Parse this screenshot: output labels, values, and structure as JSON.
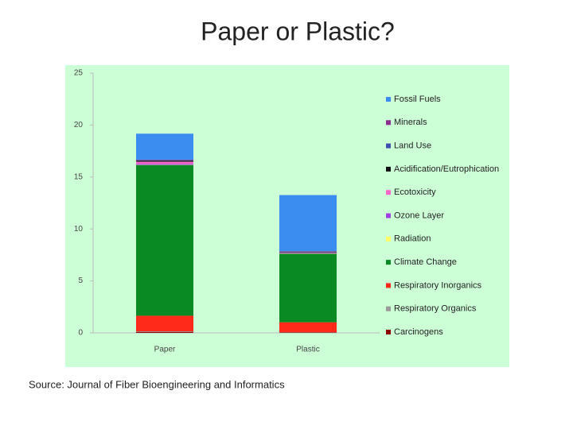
{
  "chart_data": {
    "type": "stacked-bar",
    "title": "Paper or Plastic?",
    "source": "Source: Journal of Fiber Bioengineering and Informatics",
    "categories": [
      "Paper",
      "Plastic"
    ],
    "series": [
      {
        "name": "Carcinogens",
        "color": "#8b0000",
        "values": [
          0.1,
          0.05
        ]
      },
      {
        "name": "Respiratory Organics",
        "color": "#999999",
        "values": [
          0.05,
          0.02
        ]
      },
      {
        "name": "Respiratory Inorganics",
        "color": "#ff2a1a",
        "values": [
          1.5,
          0.95
        ]
      },
      {
        "name": "Climate Change",
        "color": "#0a8a23",
        "values": [
          14.5,
          6.6
        ]
      },
      {
        "name": "Radiation",
        "color": "#ffff66",
        "values": [
          0.02,
          0.02
        ]
      },
      {
        "name": "Ozone Layer",
        "color": "#a040e0",
        "values": [
          0.1,
          0.05
        ]
      },
      {
        "name": "Ecotoxicity",
        "color": "#ff66cc",
        "values": [
          0.2,
          0.05
        ]
      },
      {
        "name": "Acidification/Eutrophication",
        "color": "#111111",
        "values": [
          0.1,
          0.05
        ]
      },
      {
        "name": "Land Use",
        "color": "#4050b0",
        "values": [
          0.05,
          0.02
        ]
      },
      {
        "name": "Minerals",
        "color": "#8b2c8b",
        "values": [
          0.05,
          0.05
        ]
      },
      {
        "name": "Fossil Fuels",
        "color": "#3c8df0",
        "values": [
          2.5,
          5.4
        ]
      }
    ],
    "ylim": [
      0,
      25
    ],
    "yticks": [
      0,
      5,
      10,
      15,
      20,
      25
    ],
    "grid": false,
    "legend": "right"
  }
}
